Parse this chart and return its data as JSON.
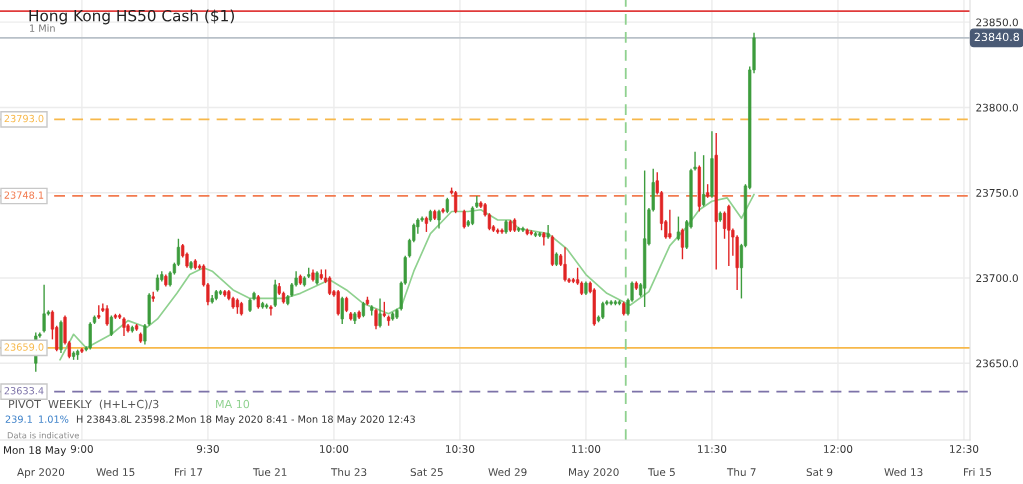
{
  "chart_data": {
    "type": "candlestick",
    "title": "Hong Kong HS50 Cash ($1)",
    "subtitle": "1 Min",
    "x": [
      8.817,
      8.833,
      8.85,
      8.867,
      8.883,
      8.9,
      8.917,
      8.933,
      8.95,
      8.967,
      8.983,
      9.0,
      9.017,
      9.033,
      9.05,
      9.067,
      9.083,
      9.1,
      9.117,
      9.133,
      9.15,
      9.167,
      9.183,
      9.2,
      9.217,
      9.233,
      9.25,
      9.267,
      9.283,
      9.3,
      9.317,
      9.333,
      9.35,
      9.367,
      9.383,
      9.4,
      9.417,
      9.433,
      9.45,
      9.467,
      9.483,
      9.5,
      9.517,
      9.533,
      9.55,
      9.567,
      9.583,
      9.6,
      9.617,
      9.633,
      9.667,
      9.683,
      9.7,
      9.717,
      9.733,
      9.75,
      9.767,
      9.783,
      9.8,
      9.817,
      9.833,
      9.85,
      9.867,
      9.883,
      9.9,
      9.917,
      9.933,
      9.95,
      9.967,
      9.983,
      10.0,
      10.017,
      10.033,
      10.05,
      10.067,
      10.083,
      10.1,
      10.117,
      10.133,
      10.15,
      10.167,
      10.183,
      10.2,
      10.217,
      10.233,
      10.25,
      10.267,
      10.283,
      10.3,
      10.317,
      10.333,
      10.35,
      10.367,
      10.383,
      10.4,
      10.417,
      10.433,
      10.45,
      10.467,
      10.483,
      10.517,
      10.533,
      10.55,
      10.567,
      10.583,
      10.6,
      10.617,
      10.633,
      10.65,
      10.667,
      10.683,
      10.7,
      10.717,
      10.733,
      10.75,
      10.767,
      10.783,
      10.8,
      10.817,
      10.833,
      10.85,
      10.867,
      10.883,
      10.9,
      10.917,
      10.933,
      10.95,
      10.967,
      10.983,
      11.0,
      11.017,
      11.033,
      11.05,
      11.067,
      11.083,
      11.1,
      11.117,
      11.133,
      11.15,
      11.167,
      11.183,
      11.2,
      11.217,
      11.233,
      11.25,
      11.267,
      11.283,
      11.3,
      11.317,
      11.333,
      11.367,
      11.383,
      11.4,
      11.417,
      11.433,
      11.45,
      11.467,
      11.483,
      11.5,
      11.517,
      11.533,
      11.55,
      11.567,
      11.583,
      11.6,
      11.617,
      11.633,
      11.65,
      11.667
    ],
    "ohlc": [
      [
        23650,
        23668,
        23645,
        23666
      ],
      [
        23666,
        23668,
        23665,
        23667
      ],
      [
        23669,
        23696,
        23668,
        23679
      ],
      [
        23679,
        23681,
        23678,
        23680
      ],
      [
        23680,
        23681,
        23664,
        23670
      ],
      [
        23671,
        23672,
        23657,
        23658
      ],
      [
        23658,
        23675,
        23656,
        23674
      ],
      [
        23677,
        23678,
        23661,
        23662
      ],
      [
        23662,
        23663,
        23653,
        23654
      ],
      [
        23654,
        23657,
        23652,
        23656
      ],
      [
        23655,
        23658,
        23652,
        23657
      ],
      [
        23658,
        23659,
        23656,
        23657
      ],
      [
        23658,
        23660,
        23657,
        23659
      ],
      [
        23659,
        23674,
        23658,
        23673
      ],
      [
        23674,
        23678,
        23673,
        23677
      ],
      [
        23678,
        23684,
        23676,
        23677
      ],
      [
        23682,
        23685,
        23680,
        23681
      ],
      [
        23682,
        23684,
        23672,
        23673
      ],
      [
        23667,
        23678,
        23666,
        23677
      ],
      [
        23678,
        23679,
        23676,
        23677
      ],
      [
        23678,
        23679,
        23676,
        23677
      ],
      [
        23676,
        23677,
        23666,
        23671
      ],
      [
        23672,
        23673,
        23668,
        23669
      ],
      [
        23669,
        23672,
        23668,
        23671
      ],
      [
        23672,
        23673,
        23669,
        23670
      ],
      [
        23667,
        23668,
        23662,
        23663
      ],
      [
        23663,
        23673,
        23661,
        23672
      ],
      [
        23673,
        23691,
        23672,
        23690
      ],
      [
        23689,
        23692,
        23686,
        23688
      ],
      [
        23693,
        23702,
        23692,
        23700
      ],
      [
        23699,
        23704,
        23698,
        23702
      ],
      [
        23701,
        23702,
        23695,
        23696
      ],
      [
        23696,
        23704,
        23695,
        23703
      ],
      [
        23703,
        23709,
        23702,
        23708
      ],
      [
        23708,
        23723,
        23707,
        23718
      ],
      [
        23719,
        23720,
        23712,
        23713
      ],
      [
        23714,
        23715,
        23706,
        23707
      ],
      [
        23706,
        23710,
        23705,
        23709
      ],
      [
        23710,
        23711,
        23705,
        23706
      ],
      [
        23707,
        23708,
        23705,
        23706
      ],
      [
        23707,
        23708,
        23695,
        23696
      ],
      [
        23696,
        23697,
        23684,
        23686
      ],
      [
        23686,
        23690,
        23685,
        23688
      ],
      [
        23688,
        23693,
        23687,
        23692
      ],
      [
        23691,
        23693,
        23690,
        23692
      ],
      [
        23692,
        23693,
        23689,
        23690
      ],
      [
        23692,
        23693,
        23687,
        23688
      ],
      [
        23688,
        23689,
        23682,
        23683
      ],
      [
        23687,
        23688,
        23679,
        23683
      ],
      [
        23685,
        23686,
        23678,
        23679
      ],
      [
        23681,
        23688,
        23680,
        23687
      ],
      [
        23688,
        23692,
        23687,
        23691
      ],
      [
        23689,
        23690,
        23682,
        23683
      ],
      [
        23683,
        23686,
        23682,
        23685
      ],
      [
        23683,
        23685,
        23682,
        23684
      ],
      [
        23683,
        23684,
        23678,
        23682
      ],
      [
        23684,
        23699,
        23683,
        23696
      ],
      [
        23695,
        23697,
        23690,
        23691
      ],
      [
        23691,
        23692,
        23685,
        23686
      ],
      [
        23685,
        23690,
        23684,
        23689
      ],
      [
        23690,
        23697,
        23689,
        23696
      ],
      [
        23696,
        23704,
        23695,
        23700
      ],
      [
        23701,
        23702,
        23696,
        23697
      ],
      [
        23696,
        23701,
        23695,
        23700
      ],
      [
        23701,
        23706,
        23700,
        23702
      ],
      [
        23703,
        23705,
        23698,
        23699
      ],
      [
        23697,
        23704,
        23696,
        23703
      ],
      [
        23702,
        23705,
        23699,
        23700
      ],
      [
        23700,
        23705,
        23697,
        23698
      ],
      [
        23700,
        23701,
        23690,
        23691
      ],
      [
        23692,
        23693,
        23689,
        23690
      ],
      [
        23692,
        23693,
        23678,
        23679
      ],
      [
        23676,
        23689,
        23673,
        23688
      ],
      [
        23688,
        23689,
        23680,
        23681
      ],
      [
        23679,
        23680,
        23675,
        23676
      ],
      [
        23675,
        23680,
        23673,
        23679
      ],
      [
        23680,
        23681,
        23676,
        23677
      ],
      [
        23678,
        23686,
        23677,
        23685
      ],
      [
        23687,
        23689,
        23684,
        23685
      ],
      [
        23681,
        23684,
        23678,
        23683
      ],
      [
        23681,
        23682,
        23670,
        23672
      ],
      [
        23672,
        23688,
        23671,
        23679
      ],
      [
        23679,
        23686,
        23677,
        23678
      ],
      [
        23677,
        23678,
        23672,
        23675
      ],
      [
        23676,
        23680,
        23675,
        23679
      ],
      [
        23677,
        23682,
        23676,
        23681
      ],
      [
        23682,
        23698,
        23681,
        23697
      ],
      [
        23697,
        23713,
        23696,
        23712
      ],
      [
        23713,
        23723,
        23712,
        23722
      ],
      [
        23722,
        23732,
        23721,
        23731
      ],
      [
        23730,
        23735,
        23726,
        23734
      ],
      [
        23734,
        23736,
        23733,
        23735
      ],
      [
        23735,
        23736,
        23727,
        23732
      ],
      [
        23734,
        23740,
        23733,
        23739
      ],
      [
        23739,
        23740,
        23734,
        23735
      ],
      [
        23734,
        23740,
        23729,
        23739
      ],
      [
        23740,
        23741,
        23738,
        23739
      ],
      [
        23739,
        23747,
        23738,
        23746
      ],
      [
        23751,
        23753,
        23749,
        23750
      ],
      [
        23750,
        23751,
        23738,
        23739
      ],
      [
        23739,
        23740,
        23729,
        23730
      ],
      [
        23731,
        23734,
        23730,
        23733
      ],
      [
        23732,
        23742,
        23731,
        23741
      ],
      [
        23742,
        23748,
        23741,
        23744
      ],
      [
        23744,
        23745,
        23741,
        23742
      ],
      [
        23743,
        23744,
        23736,
        23737
      ],
      [
        23737,
        23738,
        23728,
        23729
      ],
      [
        23730,
        23731,
        23727,
        23728
      ],
      [
        23728,
        23729,
        23726,
        23727
      ],
      [
        23728,
        23729,
        23726,
        23727
      ],
      [
        23727,
        23734,
        23726,
        23733
      ],
      [
        23733,
        23734,
        23727,
        23728
      ],
      [
        23734,
        23735,
        23727,
        23728
      ],
      [
        23728,
        23730,
        23727,
        23729
      ],
      [
        23728,
        23730,
        23727,
        23729
      ],
      [
        23728,
        23729,
        23725,
        23726
      ],
      [
        23727,
        23728,
        23725,
        23726
      ],
      [
        23725,
        23727,
        23724,
        23726
      ],
      [
        23725,
        23727,
        23724,
        23726
      ],
      [
        23726,
        23727,
        23719,
        23724
      ],
      [
        23724,
        23731,
        23723,
        23726
      ],
      [
        23724,
        23725,
        23707,
        23708
      ],
      [
        23708,
        23715,
        23707,
        23714
      ],
      [
        23713,
        23714,
        23707,
        23708
      ],
      [
        23708,
        23718,
        23698,
        23699
      ],
      [
        23699,
        23700,
        23697,
        23698
      ],
      [
        23699,
        23700,
        23697,
        23698
      ],
      [
        23699,
        23706,
        23696,
        23697
      ],
      [
        23697,
        23698,
        23690,
        23691
      ],
      [
        23691,
        23698,
        23690,
        23697
      ],
      [
        23697,
        23698,
        23691,
        23692
      ],
      [
        23693,
        23694,
        23672,
        23673
      ],
      [
        23675,
        23678,
        23674,
        23677
      ],
      [
        23677,
        23686,
        23676,
        23685
      ],
      [
        23685,
        23687,
        23684,
        23686
      ],
      [
        23685,
        23687,
        23684,
        23686
      ],
      [
        23685,
        23687,
        23684,
        23686
      ],
      [
        23685,
        23687,
        23684,
        23686
      ],
      [
        23685,
        23686,
        23678,
        23679
      ],
      [
        23679,
        23688,
        23678,
        23687
      ],
      [
        23687,
        23698,
        23686,
        23697
      ],
      [
        23697,
        23698,
        23693,
        23694
      ],
      [
        23690,
        23697,
        23689,
        23696
      ],
      [
        23694,
        23763,
        23683,
        23723
      ],
      [
        23720,
        23741,
        23719,
        23740
      ],
      [
        23740,
        23764,
        23739,
        23756
      ],
      [
        23757,
        23762,
        23749,
        23750
      ],
      [
        23750,
        23751,
        23728,
        23732
      ],
      [
        23733,
        23734,
        23723,
        23724
      ],
      [
        23726,
        23740,
        23723,
        23724
      ],
      [
        23723,
        23736,
        23722,
        23727
      ],
      [
        23728,
        23729,
        23711,
        23718
      ],
      [
        23718,
        23734,
        23717,
        23733
      ],
      [
        23730,
        23764,
        23729,
        23763
      ],
      [
        23764,
        23774,
        23763,
        23765
      ],
      [
        23765,
        23766,
        23739,
        23742
      ],
      [
        23743,
        23772,
        23742,
        23749
      ],
      [
        23750,
        23755,
        23747,
        23748
      ],
      [
        23748,
        23786,
        23747,
        23770
      ],
      [
        23772,
        23785,
        23705,
        23733
      ],
      [
        23734,
        23739,
        23733,
        23738
      ],
      [
        23738,
        23739,
        23723,
        23729
      ],
      [
        23742,
        23743,
        23707,
        23728
      ],
      [
        23728,
        23729,
        23713,
        23724
      ],
      [
        23724,
        23725,
        23693,
        23706
      ],
      [
        23706,
        23720,
        23688,
        23719
      ],
      [
        23719,
        23755,
        23718,
        23754
      ],
      [
        23753,
        23824,
        23752,
        23822
      ],
      [
        23822,
        23843.8,
        23820,
        23840.8
      ]
    ],
    "colors": [
      "#3d9c3d",
      "#3d9c3d",
      "#3d9c3d",
      "#3d9c3d",
      "#e02424",
      "#e02424",
      "#3d9c3d",
      "#e02424",
      "#e02424",
      "#3d9c3d",
      "#3d9c3d",
      "#e02424",
      "#3d9c3d",
      "#3d9c3d",
      "#3d9c3d",
      "#e02424",
      "#e02424",
      "#e02424",
      "#3d9c3d",
      "#e02424",
      "#e02424",
      "#e02424",
      "#e02424",
      "#3d9c3d",
      "#e02424",
      "#e02424",
      "#3d9c3d",
      "#3d9c3d",
      "#e02424",
      "#3d9c3d",
      "#3d9c3d",
      "#e02424",
      "#3d9c3d",
      "#3d9c3d",
      "#3d9c3d",
      "#e02424",
      "#e02424",
      "#3d9c3d",
      "#e02424",
      "#e02424",
      "#e02424",
      "#e02424",
      "#3d9c3d",
      "#3d9c3d",
      "#3d9c3d",
      "#e02424",
      "#e02424",
      "#e02424",
      "#e02424",
      "#e02424",
      "#3d9c3d",
      "#3d9c3d",
      "#e02424",
      "#3d9c3d",
      "#3d9c3d",
      "#e02424",
      "#3d9c3d",
      "#e02424",
      "#e02424",
      "#3d9c3d",
      "#3d9c3d",
      "#3d9c3d",
      "#e02424",
      "#3d9c3d",
      "#3d9c3d",
      "#e02424",
      "#3d9c3d",
      "#e02424",
      "#e02424",
      "#e02424",
      "#e02424",
      "#e02424",
      "#3d9c3d",
      "#e02424",
      "#e02424",
      "#3d9c3d",
      "#e02424",
      "#3d9c3d",
      "#e02424",
      "#3d9c3d",
      "#e02424",
      "#3d9c3d",
      "#e02424",
      "#e02424",
      "#3d9c3d",
      "#3d9c3d",
      "#3d9c3d",
      "#3d9c3d",
      "#3d9c3d",
      "#3d9c3d",
      "#3d9c3d",
      "#3d9c3d",
      "#e02424",
      "#3d9c3d",
      "#e02424",
      "#3d9c3d",
      "#e02424",
      "#3d9c3d",
      "#e02424",
      "#e02424",
      "#e02424",
      "#3d9c3d",
      "#3d9c3d",
      "#3d9c3d",
      "#e02424",
      "#e02424",
      "#e02424",
      "#e02424",
      "#e02424",
      "#e02424",
      "#3d9c3d",
      "#e02424",
      "#e02424",
      "#3d9c3d",
      "#3d9c3d",
      "#e02424",
      "#e02424",
      "#3d9c3d",
      "#3d9c3d",
      "#e02424",
      "#3d9c3d",
      "#e02424",
      "#3d9c3d",
      "#e02424",
      "#e02424",
      "#e02424",
      "#e02424",
      "#e02424",
      "#e02424",
      "#3d9c3d",
      "#e02424",
      "#e02424",
      "#3d9c3d",
      "#3d9c3d",
      "#3d9c3d",
      "#3d9c3d",
      "#3d9c3d",
      "#3d9c3d",
      "#e02424",
      "#3d9c3d",
      "#3d9c3d",
      "#e02424",
      "#3d9c3d",
      "#3d9c3d",
      "#3d9c3d",
      "#3d9c3d",
      "#e02424",
      "#e02424",
      "#e02424",
      "#e02424",
      "#3d9c3d",
      "#e02424",
      "#3d9c3d",
      "#3d9c3d",
      "#3d9c3d",
      "#e02424",
      "#3d9c3d",
      "#e02424",
      "#3d9c3d",
      "#e02424",
      "#3d9c3d",
      "#e02424",
      "#e02424",
      "#e02424",
      "#e02424",
      "#3d9c3d",
      "#3d9c3d",
      "#3d9c3d",
      "#3d9c3d"
    ],
    "series": [
      {
        "name": "MA 10",
        "type": "line",
        "color": "#8fd18f",
        "x": [
          8.913,
          8.967,
          9.017,
          9.117,
          9.183,
          9.258,
          9.3,
          9.377,
          9.428,
          9.483,
          9.517,
          9.6,
          9.667,
          9.8,
          9.867,
          9.983,
          10.05,
          10.117,
          10.217,
          10.267,
          10.317,
          10.383,
          10.467,
          10.533,
          10.583,
          10.65,
          10.7,
          10.733,
          10.85,
          10.925,
          11.0,
          11.083,
          11.175,
          11.25,
          11.333,
          11.4,
          11.45,
          11.5,
          11.56,
          11.617,
          11.667
        ],
        "values": [
          23652,
          23667,
          23659,
          23667,
          23675,
          23671,
          23676,
          23691,
          23702,
          23706,
          23704,
          23693,
          23688,
          23688,
          23691,
          23699,
          23693,
          23685,
          23679,
          23683,
          23704,
          23726,
          23739,
          23739,
          23740,
          23734,
          23734,
          23729,
          23726,
          23717,
          23702,
          23691,
          23684,
          23692,
          23719,
          23730,
          23740,
          23745,
          23747,
          23735,
          23749
        ]
      }
    ],
    "xlim": [
      8.675,
      12.524
    ],
    "ylim": [
      23605,
      23863
    ],
    "xticks": [
      {
        "value": 9.0,
        "label": "9:00"
      },
      {
        "value": 9.5,
        "label": "9:30"
      },
      {
        "value": 10.0,
        "label": "10:00"
      },
      {
        "value": 10.5,
        "label": "10:30"
      },
      {
        "value": 11.0,
        "label": "11:00"
      },
      {
        "value": 11.5,
        "label": "11:30"
      },
      {
        "value": 12.0,
        "label": "12:00"
      },
      {
        "value": 12.5,
        "label": "12:30"
      }
    ],
    "yticks": [
      {
        "value": 23650,
        "label": "23650.0"
      },
      {
        "value": 23700,
        "label": "23700.0"
      },
      {
        "value": 23750,
        "label": "23750.0"
      },
      {
        "value": 23800,
        "label": "23800.0"
      },
      {
        "value": 23850,
        "label": "23850.0"
      }
    ],
    "ref_lines": [
      {
        "axis": "y",
        "value": 23856.5,
        "color": "#e03a3a",
        "line_style": "solid"
      },
      {
        "axis": "y",
        "value": 23840.8,
        "label": "23840.8",
        "color": "#b8c0c8",
        "line_style": "solid"
      },
      {
        "axis": "y",
        "value": 23793.0,
        "label": "23793.0",
        "color": "#f7b84a",
        "line_style": "dashed"
      },
      {
        "axis": "y",
        "value": 23748.1,
        "label": "23748.1",
        "color": "#f27a4e",
        "line_style": "dashed"
      },
      {
        "axis": "y",
        "value": 23659.0,
        "label": "23659.0",
        "color": "#f7b84a",
        "line_style": "solid"
      },
      {
        "axis": "y",
        "value": 23633.4,
        "label": "23633.4",
        "color": "#7c72a8",
        "line_style": "dashed"
      },
      {
        "axis": "x",
        "value": 11.158,
        "color": "#8fd18f",
        "line_style": "dashed"
      }
    ],
    "annotations": [
      "PIVOT  WEEKLY  (H+L+C)/3",
      "239.1",
      "1.01%",
      "H 23843.8",
      "L 23598.2",
      "Mon 18 May 2020 8:41 - Mon 18 May 2020 12:43",
      "Data is indicative",
      "Mon 18 May",
      "Apr 2020",
      "Wed 15",
      "Fri 17",
      "Tue 21",
      "Thu 23",
      "Sat 25",
      "Wed 29",
      "May 2020",
      "Tue 5",
      "Thu 7",
      "Sat 9",
      "Wed 13",
      "Fri 15"
    ],
    "grid": true,
    "legend": false
  }
}
